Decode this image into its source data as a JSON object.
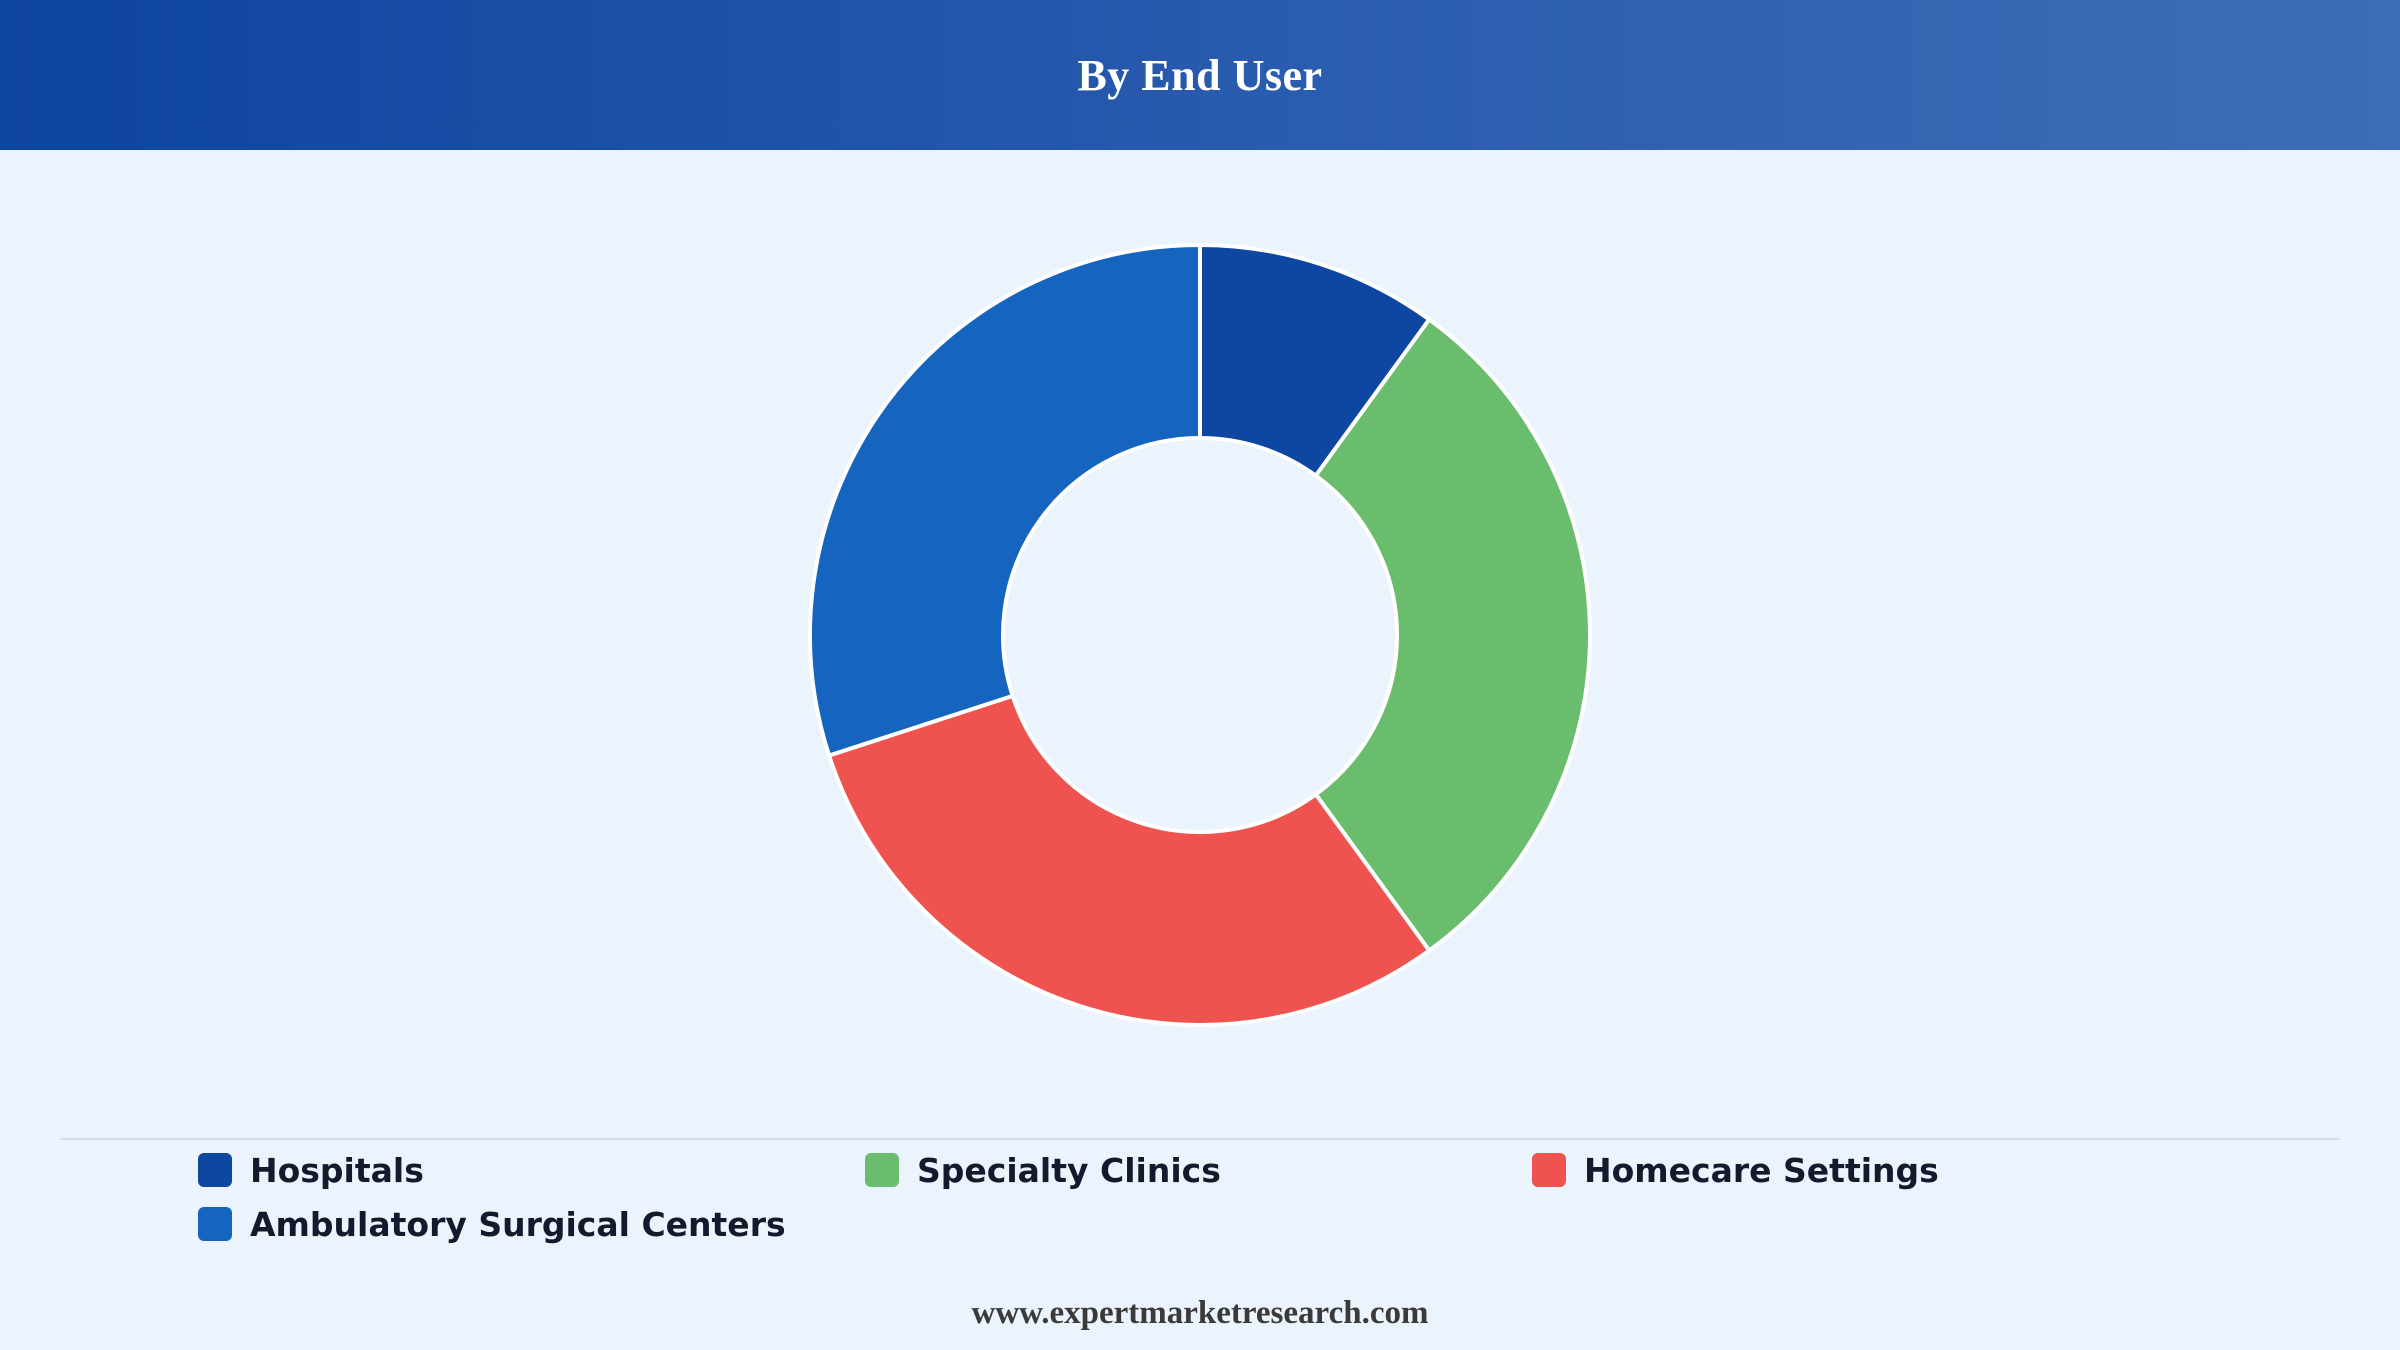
{
  "header": {
    "title": "By End User"
  },
  "chart_data": {
    "type": "pie",
    "title": "By End User",
    "donut": true,
    "categories": [
      "Hospitals",
      "Specialty Clinics",
      "Homecare Settings",
      "Ambulatory Surgical Centers"
    ],
    "values": [
      10,
      30,
      30,
      30
    ],
    "colors": [
      "#0d47a1",
      "#6abd6d",
      "#ef5350",
      "#1565c0"
    ],
    "legend_position": "bottom"
  },
  "legend": {
    "items": [
      {
        "label": "Hospitals",
        "color": "#0d47a1"
      },
      {
        "label": "Specialty Clinics",
        "color": "#6abd6d"
      },
      {
        "label": "Homecare Settings",
        "color": "#ef5350"
      },
      {
        "label": "Ambulatory Surgical Centers",
        "color": "#1565c0"
      }
    ]
  },
  "footer": {
    "website": "www.expertmarketresearch.com"
  }
}
